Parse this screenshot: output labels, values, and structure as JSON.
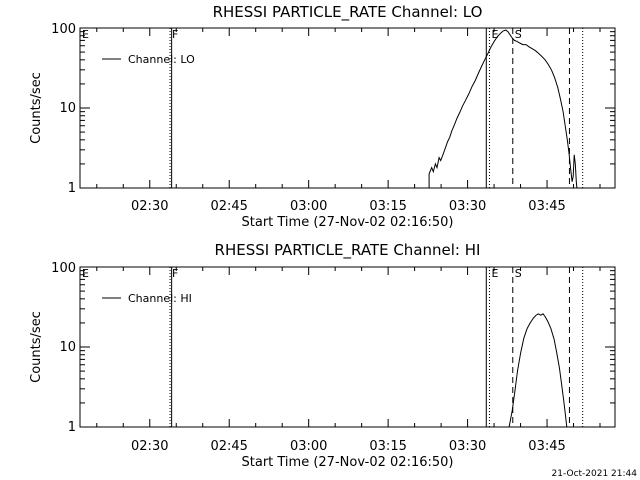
{
  "footer": {
    "timestamp": "21-Oct-2021 21:44"
  },
  "chart_data": [
    {
      "type": "line",
      "title": "RHESSI PARTICLE_RATE Channel: LO",
      "xlabel": "Start Time (27-Nov-02 02:16:50)",
      "ylabel": "Counts/sec",
      "x_unit": "minutes after 02:16:50",
      "xlim": [
        0,
        101
      ],
      "ylim": [
        1,
        100
      ],
      "yscale": "log",
      "x_ticks": [
        {
          "label": "02:30",
          "value": 13.17
        },
        {
          "label": "02:45",
          "value": 28.17
        },
        {
          "label": "03:00",
          "value": 43.17
        },
        {
          "label": "03:15",
          "value": 58.17
        },
        {
          "label": "03:30",
          "value": 73.17
        },
        {
          "label": "03:45",
          "value": 88.17
        }
      ],
      "y_ticks": [
        {
          "label": "1",
          "value": 1
        },
        {
          "label": "10",
          "value": 10
        },
        {
          "label": "100",
          "value": 100
        }
      ],
      "legend": {
        "label": "Channel: LO",
        "placement": "top-left"
      },
      "markers": [
        {
          "label": "E",
          "x": 0,
          "style": "none"
        },
        {
          "label": "F",
          "x": 17.0,
          "style": "dotted"
        },
        {
          "label": "",
          "x": 17.3,
          "style": "solid"
        },
        {
          "label": "",
          "x": 76.7,
          "style": "solid"
        },
        {
          "label": "E",
          "x": 77.3,
          "style": "dotted"
        },
        {
          "label": "S",
          "x": 81.7,
          "style": "dashed"
        },
        {
          "label": "",
          "x": 92.4,
          "style": "dashed"
        },
        {
          "label": "",
          "x": 94.9,
          "style": "dotted"
        }
      ],
      "series": [
        {
          "values": [
            [
              65.9,
              1.0
            ],
            [
              65.9,
              1.5
            ],
            [
              66.4,
              1.8
            ],
            [
              66.7,
              1.6
            ],
            [
              67.1,
              2.0
            ],
            [
              67.4,
              1.8
            ],
            [
              67.8,
              2.4
            ],
            [
              68.1,
              2.2
            ],
            [
              68.6,
              2.7
            ],
            [
              69.0,
              3.2
            ],
            [
              69.4,
              3.8
            ],
            [
              69.8,
              4.3
            ],
            [
              70.2,
              5.2
            ],
            [
              70.7,
              6.2
            ],
            [
              71.2,
              7.5
            ],
            [
              71.7,
              8.8
            ],
            [
              72.2,
              10.5
            ],
            [
              72.8,
              12.5
            ],
            [
              73.4,
              15.0
            ],
            [
              74.0,
              18.5
            ],
            [
              74.6,
              22.0
            ],
            [
              75.2,
              27.0
            ],
            [
              75.8,
              33.0
            ],
            [
              76.4,
              40.0
            ],
            [
              77.0,
              48.0
            ],
            [
              77.6,
              58.0
            ],
            [
              78.2,
              68.0
            ],
            [
              78.8,
              78.0
            ],
            [
              79.4,
              86.0
            ],
            [
              79.9,
              92.0
            ],
            [
              80.4,
              94.0
            ],
            [
              80.8,
              90.0
            ],
            [
              81.2,
              82.0
            ],
            [
              81.6,
              75.0
            ],
            [
              82.0,
              70.0
            ],
            [
              82.5,
              68.0
            ],
            [
              83.0,
              65.0
            ],
            [
              83.6,
              62.0
            ],
            [
              84.2,
              62.0
            ],
            [
              84.8,
              58.0
            ],
            [
              85.4,
              55.0
            ],
            [
              86.0,
              52.0
            ],
            [
              86.6,
              48.0
            ],
            [
              87.2,
              44.0
            ],
            [
              87.8,
              40.0
            ],
            [
              88.4,
              35.0
            ],
            [
              89.0,
              30.0
            ],
            [
              89.6,
              24.0
            ],
            [
              90.2,
              18.0
            ],
            [
              90.7,
              13.0
            ],
            [
              91.2,
              9.0
            ],
            [
              91.6,
              6.0
            ],
            [
              92.0,
              4.0
            ],
            [
              92.3,
              2.8
            ],
            [
              92.6,
              1.8
            ],
            [
              92.9,
              1.2
            ],
            [
              93.1,
              1.4
            ],
            [
              93.3,
              2.6
            ],
            [
              93.5,
              2.0
            ],
            [
              93.7,
              1.2
            ],
            [
              93.8,
              1.0
            ]
          ]
        }
      ]
    },
    {
      "type": "line",
      "title": "RHESSI PARTICLE_RATE Channel: HI",
      "xlabel": "Start Time (27-Nov-02 02:16:50)",
      "ylabel": "Counts/sec",
      "x_unit": "minutes after 02:16:50",
      "xlim": [
        0,
        101
      ],
      "ylim": [
        1,
        100
      ],
      "yscale": "log",
      "x_ticks": [
        {
          "label": "02:30",
          "value": 13.17
        },
        {
          "label": "02:45",
          "value": 28.17
        },
        {
          "label": "03:00",
          "value": 43.17
        },
        {
          "label": "03:15",
          "value": 58.17
        },
        {
          "label": "03:30",
          "value": 73.17
        },
        {
          "label": "03:45",
          "value": 88.17
        }
      ],
      "y_ticks": [
        {
          "label": "1",
          "value": 1
        },
        {
          "label": "10",
          "value": 10
        },
        {
          "label": "100",
          "value": 100
        }
      ],
      "legend": {
        "label": "Channel: HI",
        "placement": "top-left"
      },
      "markers": [
        {
          "label": "E",
          "x": 0,
          "style": "none"
        },
        {
          "label": "F",
          "x": 17.0,
          "style": "dotted"
        },
        {
          "label": "",
          "x": 17.3,
          "style": "solid"
        },
        {
          "label": "",
          "x": 76.7,
          "style": "solid"
        },
        {
          "label": "E",
          "x": 77.3,
          "style": "dotted"
        },
        {
          "label": "S",
          "x": 81.7,
          "style": "dashed"
        },
        {
          "label": "",
          "x": 92.4,
          "style": "dashed"
        },
        {
          "label": "",
          "x": 94.9,
          "style": "dotted"
        }
      ],
      "series": [
        {
          "values": [
            [
              81.0,
              1.0
            ],
            [
              81.6,
              1.6
            ],
            [
              82.1,
              2.8
            ],
            [
              82.6,
              5.0
            ],
            [
              83.2,
              8.5
            ],
            [
              83.8,
              13.0
            ],
            [
              84.4,
              17.0
            ],
            [
              85.0,
              20.0
            ],
            [
              85.6,
              23.0
            ],
            [
              86.1,
              25.0
            ],
            [
              86.5,
              26.0
            ],
            [
              87.0,
              25.0
            ],
            [
              87.4,
              26.0
            ],
            [
              87.8,
              24.0
            ],
            [
              88.3,
              21.0
            ],
            [
              88.9,
              17.0
            ],
            [
              89.5,
              12.5
            ],
            [
              90.0,
              8.5
            ],
            [
              90.5,
              5.5
            ],
            [
              90.9,
              3.5
            ],
            [
              91.3,
              2.2
            ],
            [
              91.6,
              1.5
            ],
            [
              91.9,
              1.0
            ]
          ]
        }
      ]
    }
  ]
}
